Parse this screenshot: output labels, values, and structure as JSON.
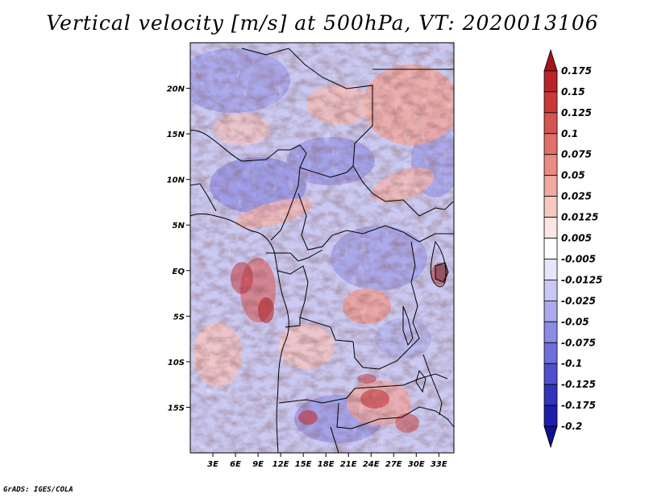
{
  "title": "Vertical velocity [m/s] at 500hPa, VT: 2020013106",
  "credit": "GrADS: IGES/COLA",
  "map": {
    "lon_min": 0,
    "lon_max": 35,
    "lat_min": -20,
    "lat_max": 25,
    "lon_ticks": [
      {
        "value": 3,
        "label": "3E"
      },
      {
        "value": 6,
        "label": "6E"
      },
      {
        "value": 9,
        "label": "9E"
      },
      {
        "value": 12,
        "label": "12E"
      },
      {
        "value": 15,
        "label": "15E"
      },
      {
        "value": 18,
        "label": "18E"
      },
      {
        "value": 21,
        "label": "21E"
      },
      {
        "value": 24,
        "label": "24E"
      },
      {
        "value": 27,
        "label": "27E"
      },
      {
        "value": 30,
        "label": "30E"
      },
      {
        "value": 33,
        "label": "33E"
      }
    ],
    "lat_ticks": [
      {
        "value": 20,
        "label": "20N"
      },
      {
        "value": 15,
        "label": "15N"
      },
      {
        "value": 10,
        "label": "10N"
      },
      {
        "value": 5,
        "label": "5N"
      },
      {
        "value": 0,
        "label": "EQ"
      },
      {
        "value": -5,
        "label": "5S"
      },
      {
        "value": -10,
        "label": "10S"
      },
      {
        "value": -15,
        "label": "15S"
      }
    ]
  },
  "colorbar": {
    "label_values": [
      "0.175",
      "0.15",
      "0.125",
      "0.1",
      "0.075",
      "0.05",
      "0.025",
      "0.0125",
      "0.005",
      "-0.005",
      "-0.0125",
      "-0.025",
      "-0.05",
      "-0.075",
      "-0.1",
      "-0.125",
      "-0.175",
      "-0.2"
    ],
    "colors": [
      "#a5141c",
      "#b8242a",
      "#c83a38",
      "#d6554e",
      "#e07068",
      "#e88c84",
      "#f0aaa3",
      "#f6c8c3",
      "#fbe6e3",
      "#ffffff",
      "#e6e6fa",
      "#c8c8f2",
      "#aaaaec",
      "#8c8ce4",
      "#6e6edc",
      "#5050cc",
      "#3232bb",
      "#1e1eaa",
      "#101090"
    ]
  },
  "field_colors": {
    "strong_up": "#c8282d",
    "up": "#f09a94",
    "weak_up": "#f7cfcb",
    "weak_down": "#d9d9f7",
    "down": "#9d9de9",
    "strong_down": "#5a5ad0"
  }
}
